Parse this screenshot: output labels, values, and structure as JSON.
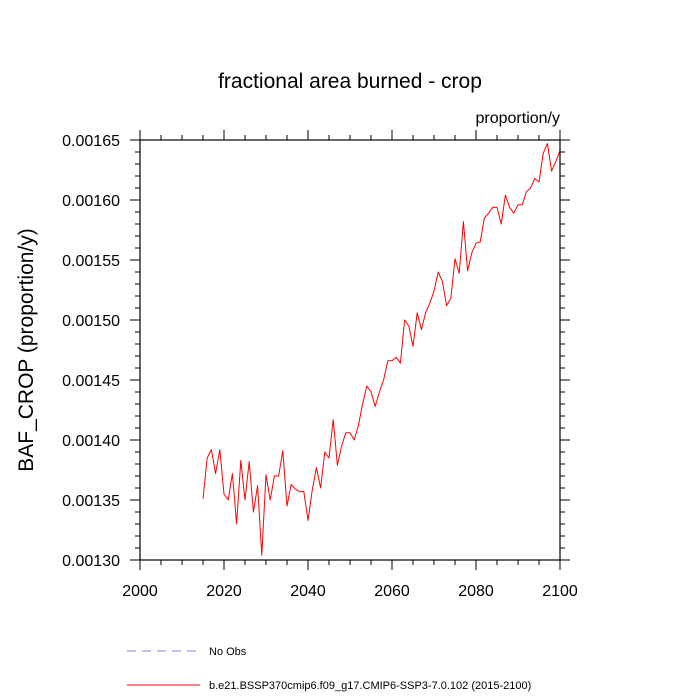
{
  "chart_data": {
    "type": "line",
    "title": "fractional area burned - crop",
    "units_label": "proportion/y",
    "xlabel": "",
    "ylabel": "BAF_CROP  (proportion/y)",
    "xlim": [
      2000,
      2100
    ],
    "ylim": [
      0.0013,
      0.00165
    ],
    "x_ticks": [
      "2000",
      "2020",
      "2040",
      "2060",
      "2080",
      "2100"
    ],
    "y_ticks": [
      "0.00130",
      "0.00135",
      "0.00140",
      "0.00145",
      "0.00150",
      "0.00155",
      "0.00160",
      "0.00165"
    ],
    "grid": false,
    "series": [
      {
        "name": "b.e21.BSSP370cmip6.f09_g17.CMIP6-SSP3-7.0.102 (2015-2100)",
        "color": "#ff0000",
        "x": [
          2015,
          2016,
          2017,
          2018,
          2019,
          2020,
          2021,
          2022,
          2023,
          2024,
          2025,
          2026,
          2027,
          2028,
          2029,
          2030,
          2031,
          2032,
          2033,
          2034,
          2035,
          2036,
          2037,
          2038,
          2039,
          2040,
          2041,
          2042,
          2043,
          2044,
          2045,
          2046,
          2047,
          2048,
          2049,
          2050,
          2051,
          2052,
          2053,
          2054,
          2055,
          2056,
          2057,
          2058,
          2059,
          2060,
          2061,
          2062,
          2063,
          2064,
          2065,
          2066,
          2067,
          2068,
          2069,
          2070,
          2071,
          2072,
          2073,
          2074,
          2075,
          2076,
          2077,
          2078,
          2079,
          2080,
          2081,
          2082,
          2083,
          2084,
          2085,
          2086,
          2087,
          2088,
          2089,
          2090,
          2091,
          2092,
          2093,
          2094,
          2095,
          2096,
          2097,
          2098,
          2099,
          2100
        ],
        "values": [
          0.001351,
          0.001385,
          0.001392,
          0.001372,
          0.001392,
          0.001355,
          0.00135,
          0.001372,
          0.00133,
          0.001383,
          0.00135,
          0.001382,
          0.00134,
          0.001362,
          0.001304,
          0.001371,
          0.00135,
          0.00137,
          0.00137,
          0.001391,
          0.001345,
          0.001363,
          0.001359,
          0.001357,
          0.001357,
          0.001333,
          0.001358,
          0.001377,
          0.00136,
          0.00139,
          0.001385,
          0.001417,
          0.001379,
          0.001395,
          0.001406,
          0.001406,
          0.0014,
          0.001412,
          0.00143,
          0.001445,
          0.00144,
          0.001428,
          0.00144,
          0.00145,
          0.001466,
          0.001466,
          0.001469,
          0.001464,
          0.0015,
          0.001495,
          0.001478,
          0.001506,
          0.001492,
          0.001506,
          0.001514,
          0.001524,
          0.00154,
          0.001532,
          0.001512,
          0.001518,
          0.001551,
          0.001539,
          0.001582,
          0.001541,
          0.001556,
          0.001564,
          0.001565,
          0.001585,
          0.001589,
          0.001594,
          0.001594,
          0.00158,
          0.001604,
          0.001594,
          0.001589,
          0.001596,
          0.001596,
          0.001607,
          0.00161,
          0.001618,
          0.001615,
          0.001639,
          0.001647,
          0.001624,
          0.001632,
          0.001641
        ]
      }
    ],
    "legend": [
      {
        "label": "No Obs",
        "style": "dashed",
        "color": "#8080ff"
      },
      {
        "label": "b.e21.BSSP370cmip6.f09_g17.CMIP6-SSP3-7.0.102 (2015-2100)",
        "style": "solid",
        "color": "#ff0000"
      }
    ],
    "legend_position": "bottom"
  }
}
